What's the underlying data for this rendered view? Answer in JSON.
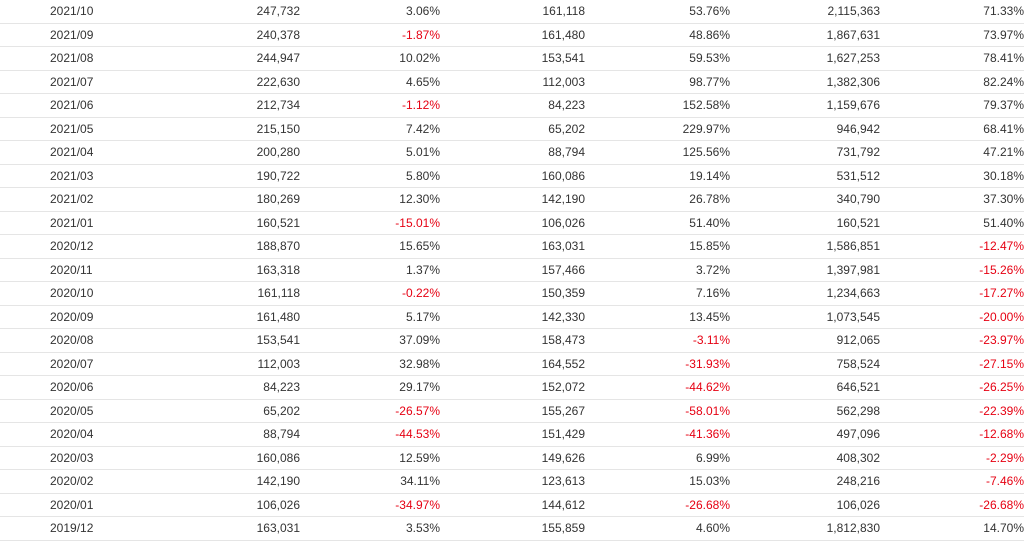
{
  "colors": {
    "text": "#333333",
    "negative": "#e60012",
    "divider": "#e5e5e5"
  },
  "rows": [
    [
      "2021/10",
      "247,732",
      "3.06%",
      "161,118",
      "53.76%",
      "2,115,363",
      "71.33%"
    ],
    [
      "2021/09",
      "240,378",
      "-1.87%",
      "161,480",
      "48.86%",
      "1,867,631",
      "73.97%"
    ],
    [
      "2021/08",
      "244,947",
      "10.02%",
      "153,541",
      "59.53%",
      "1,627,253",
      "78.41%"
    ],
    [
      "2021/07",
      "222,630",
      "4.65%",
      "112,003",
      "98.77%",
      "1,382,306",
      "82.24%"
    ],
    [
      "2021/06",
      "212,734",
      "-1.12%",
      "84,223",
      "152.58%",
      "1,159,676",
      "79.37%"
    ],
    [
      "2021/05",
      "215,150",
      "7.42%",
      "65,202",
      "229.97%",
      "946,942",
      "68.41%"
    ],
    [
      "2021/04",
      "200,280",
      "5.01%",
      "88,794",
      "125.56%",
      "731,792",
      "47.21%"
    ],
    [
      "2021/03",
      "190,722",
      "5.80%",
      "160,086",
      "19.14%",
      "531,512",
      "30.18%"
    ],
    [
      "2021/02",
      "180,269",
      "12.30%",
      "142,190",
      "26.78%",
      "340,790",
      "37.30%"
    ],
    [
      "2021/01",
      "160,521",
      "-15.01%",
      "106,026",
      "51.40%",
      "160,521",
      "51.40%"
    ],
    [
      "2020/12",
      "188,870",
      "15.65%",
      "163,031",
      "15.85%",
      "1,586,851",
      "-12.47%"
    ],
    [
      "2020/11",
      "163,318",
      "1.37%",
      "157,466",
      "3.72%",
      "1,397,981",
      "-15.26%"
    ],
    [
      "2020/10",
      "161,118",
      "-0.22%",
      "150,359",
      "7.16%",
      "1,234,663",
      "-17.27%"
    ],
    [
      "2020/09",
      "161,480",
      "5.17%",
      "142,330",
      "13.45%",
      "1,073,545",
      "-20.00%"
    ],
    [
      "2020/08",
      "153,541",
      "37.09%",
      "158,473",
      "-3.11%",
      "912,065",
      "-23.97%"
    ],
    [
      "2020/07",
      "112,003",
      "32.98%",
      "164,552",
      "-31.93%",
      "758,524",
      "-27.15%"
    ],
    [
      "2020/06",
      "84,223",
      "29.17%",
      "152,072",
      "-44.62%",
      "646,521",
      "-26.25%"
    ],
    [
      "2020/05",
      "65,202",
      "-26.57%",
      "155,267",
      "-58.01%",
      "562,298",
      "-22.39%"
    ],
    [
      "2020/04",
      "88,794",
      "-44.53%",
      "151,429",
      "-41.36%",
      "497,096",
      "-12.68%"
    ],
    [
      "2020/03",
      "160,086",
      "12.59%",
      "149,626",
      "6.99%",
      "408,302",
      "-2.29%"
    ],
    [
      "2020/02",
      "142,190",
      "34.11%",
      "123,613",
      "15.03%",
      "248,216",
      "-7.46%"
    ],
    [
      "2020/01",
      "106,026",
      "-34.97%",
      "144,612",
      "-26.68%",
      "106,026",
      "-26.68%"
    ],
    [
      "2019/12",
      "163,031",
      "3.53%",
      "155,859",
      "4.60%",
      "1,812,830",
      "14.70%"
    ]
  ]
}
